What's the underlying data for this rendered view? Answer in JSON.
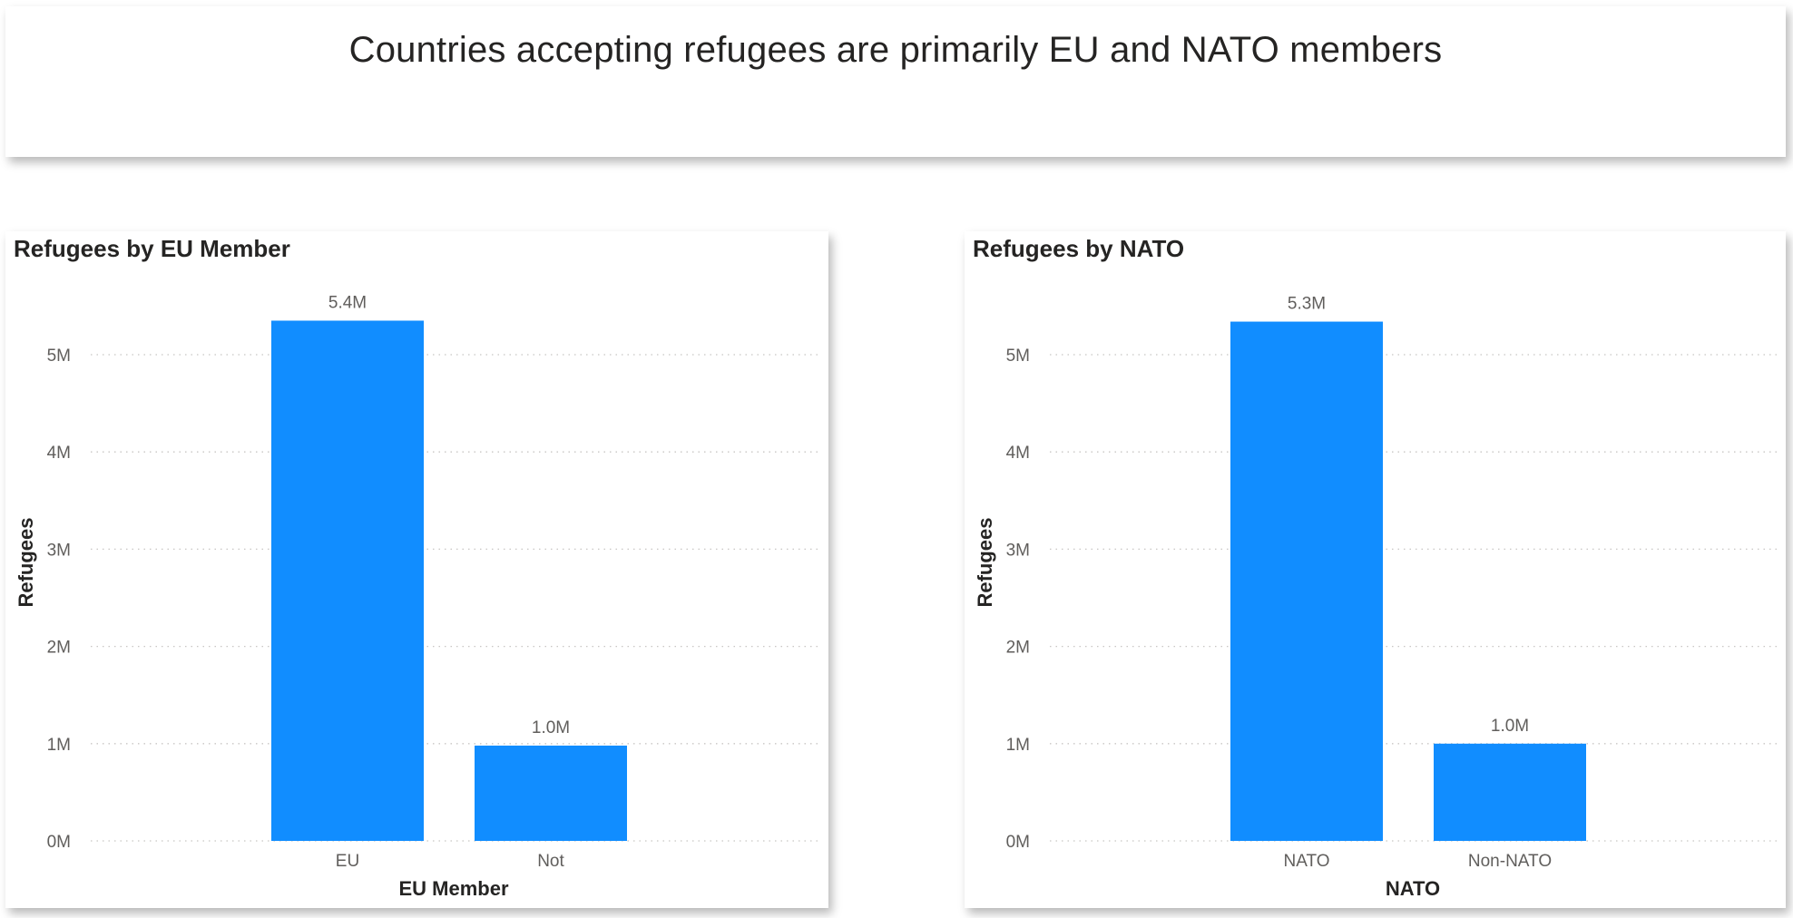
{
  "header": {
    "title": "Countries accepting refugees are primarily EU and NATO members"
  },
  "chart_data": [
    {
      "type": "bar",
      "title": "Refugees by EU Member",
      "xlabel": "EU Member",
      "ylabel": "Refugees",
      "categories": [
        "EU",
        "Not"
      ],
      "values": [
        5350000,
        980000
      ],
      "data_labels": [
        "5.4M",
        "1.0M"
      ],
      "yticks": [
        "0M",
        "1M",
        "2M",
        "3M",
        "4M",
        "5M"
      ],
      "ylim": [
        0,
        5000000
      ],
      "grid": true,
      "bar_color": "#118DFF"
    },
    {
      "type": "bar",
      "title": "Refugees by NATO",
      "xlabel": "NATO",
      "ylabel": "Refugees",
      "categories": [
        "NATO",
        "Non-NATO"
      ],
      "values": [
        5340000,
        1000000
      ],
      "data_labels": [
        "5.3M",
        "1.0M"
      ],
      "yticks": [
        "0M",
        "1M",
        "2M",
        "3M",
        "4M",
        "5M"
      ],
      "ylim": [
        0,
        5000000
      ],
      "grid": true,
      "bar_color": "#118DFF"
    }
  ]
}
